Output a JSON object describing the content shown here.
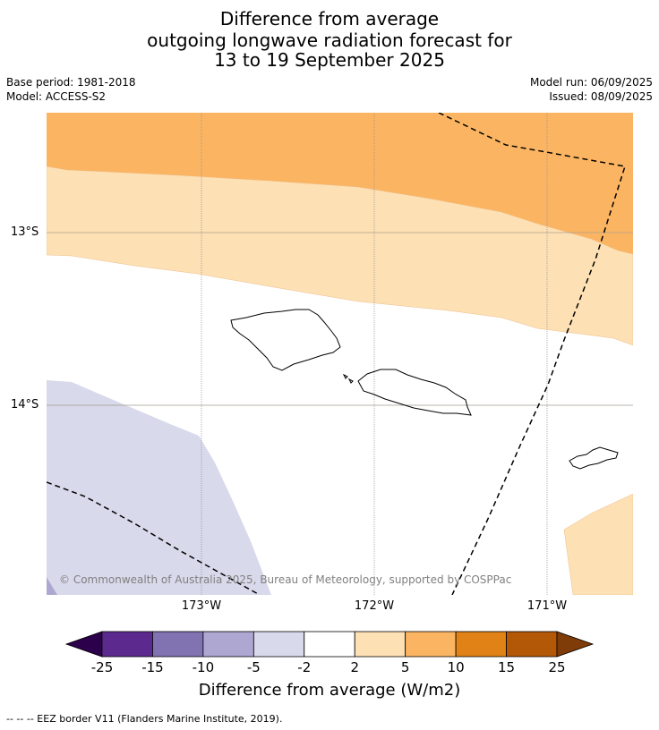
{
  "title": {
    "line1": "Difference from average",
    "line2": "outgoing longwave radiation forecast for",
    "line3": "13 to 19 September 2025"
  },
  "meta": {
    "base_period": "Base period: 1981-2018",
    "model": "Model: ACCESS-S2",
    "model_run": "Model run: 06/09/2025",
    "issued": "Issued: 08/09/2025"
  },
  "map": {
    "lat_labels": [
      "13°S",
      "14°S"
    ],
    "lon_labels": [
      "173°W",
      "172°W",
      "171°W"
    ],
    "copyright": "© Commonwealth of Australia 2025, Bureau of Meteorology, supported by COSPPac"
  },
  "colorbar": {
    "labels": [
      "-25",
      "-15",
      "-10",
      "-5",
      "-2",
      "2",
      "5",
      "10",
      "15",
      "25"
    ],
    "colors": [
      "#5c2a8e",
      "#8172b1",
      "#aea7d1",
      "#d8d9eb",
      "#ffffff",
      "#fde0b4",
      "#fbb562",
      "#e08215",
      "#b35806"
    ],
    "low_extend_color": "#2d004b",
    "high_extend_color": "#7f3b08",
    "title": "Difference from average (W/m2)"
  },
  "footnote": "--  --  -- EEZ border V11 (Flanders Marine Institute, 2019)."
}
